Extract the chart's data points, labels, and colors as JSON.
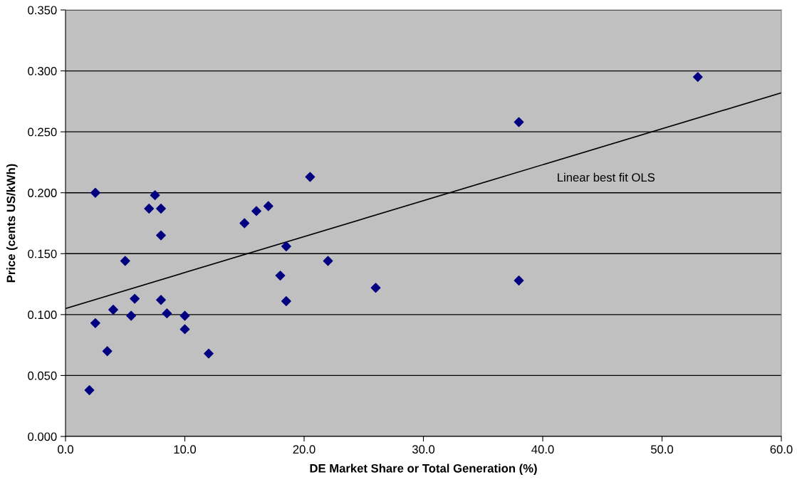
{
  "chart_data": {
    "type": "scatter",
    "xlabel": "DE Market Share or Total Generation (%)",
    "ylabel": "Price (cents US/kWh)",
    "series": [
      {
        "color": "#000080",
        "marker": "diamond",
        "x": [
          2.0,
          2.5,
          2.5,
          3.5,
          4.0,
          5.0,
          5.5,
          5.8,
          7.0,
          7.5,
          8.0,
          8.0,
          8.0,
          8.5,
          10.0,
          10.0,
          12.0,
          15.0,
          16.0,
          17.0,
          18.0,
          18.5,
          18.5,
          20.5,
          22.0,
          26.0,
          38.0,
          38.0,
          53.0
        ],
        "values": [
          0.038,
          0.2,
          0.093,
          0.07,
          0.104,
          0.144,
          0.099,
          0.113,
          0.187,
          0.198,
          0.187,
          0.165,
          0.112,
          0.101,
          0.099,
          0.088,
          0.068,
          0.175,
          0.185,
          0.189,
          0.132,
          0.156,
          0.111,
          0.213,
          0.144,
          0.122,
          0.258,
          0.128,
          0.295
        ]
      },
      {
        "type": "line",
        "color": "#000000",
        "marker": "none",
        "x": [
          0,
          60
        ],
        "values": [
          0.105,
          0.282
        ]
      }
    ],
    "annotations": [
      "Linear best fit OLS"
    ],
    "xlim": [
      0,
      60
    ],
    "xticks": [
      {
        "value": 0,
        "label": "0.0"
      },
      {
        "value": 10,
        "label": "10.0"
      },
      {
        "value": 20,
        "label": "20.0"
      },
      {
        "value": 30,
        "label": "30.0"
      },
      {
        "value": 40,
        "label": "40.0"
      },
      {
        "value": 50,
        "label": "50.0"
      },
      {
        "value": 60,
        "label": "60.0"
      }
    ],
    "ylim": [
      0,
      0.35
    ],
    "yticks": [
      {
        "value": 0,
        "label": "0.000"
      },
      {
        "value": 0.05,
        "label": "0.050"
      },
      {
        "value": 0.1,
        "label": "0.100"
      },
      {
        "value": 0.15,
        "label": "0.150"
      },
      {
        "value": 0.2,
        "label": "0.200"
      },
      {
        "value": 0.25,
        "label": "0.250"
      },
      {
        "value": 0.3,
        "label": "0.300"
      },
      {
        "value": 0.35,
        "label": "0.350"
      }
    ],
    "grid": "y",
    "legend": false
  }
}
